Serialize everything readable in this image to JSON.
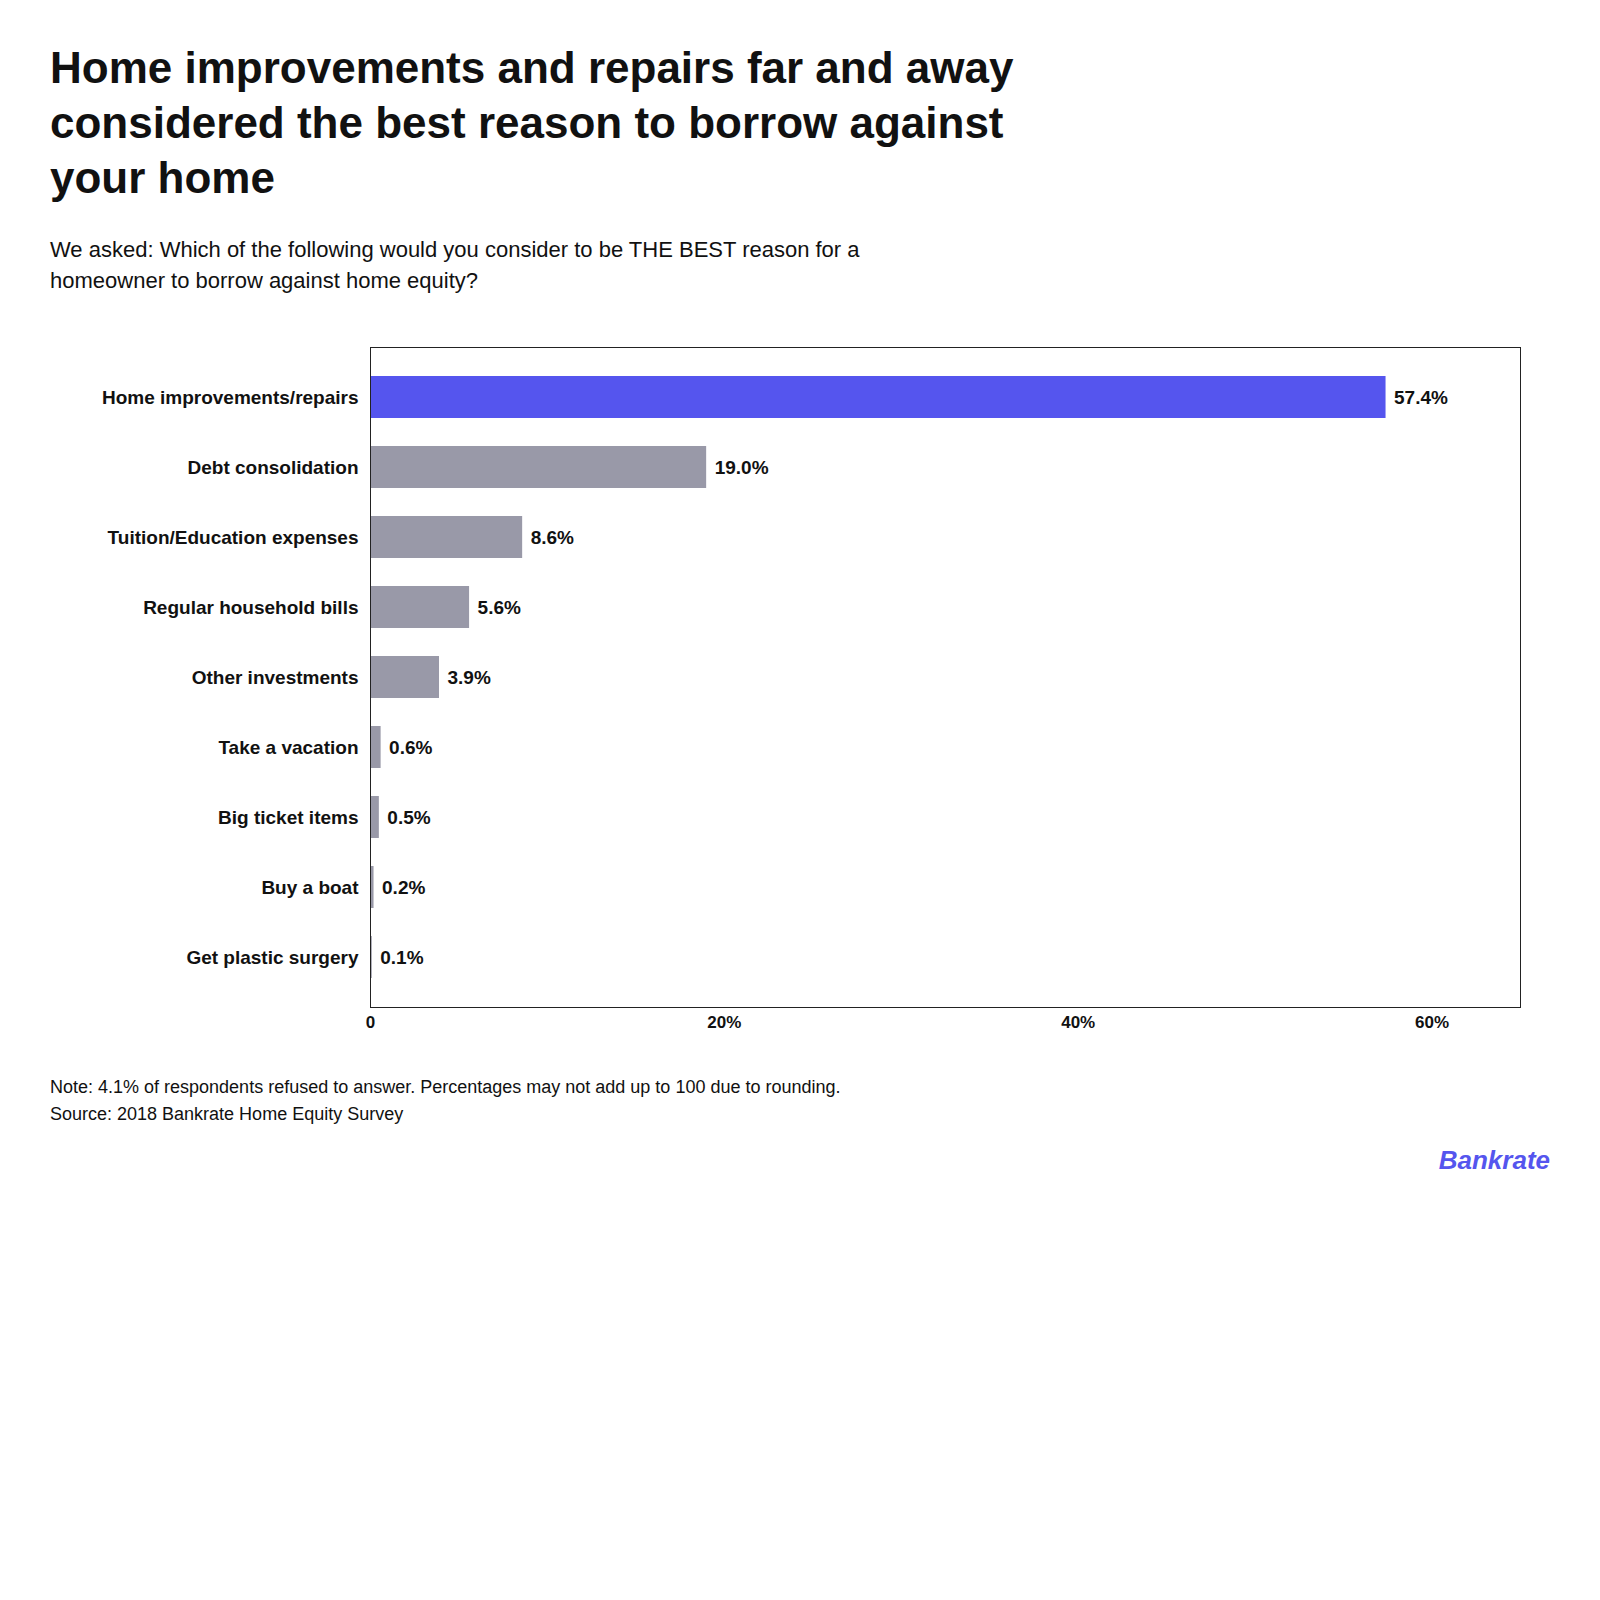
{
  "chart_data": {
    "type": "bar",
    "orientation": "horizontal",
    "title": "Home improvements and repairs far and away\nconsidered the best reason to borrow against\nyour home",
    "subtitle": "We asked:  Which of the following would you consider to be THE BEST reason for a\nhomeowner to borrow against home equity?",
    "categories": [
      "Home improvements/repairs",
      "Debt consolidation",
      "Tuition/Education expenses",
      "Regular household bills",
      "Other investments",
      "Take a vacation",
      "Big ticket items",
      "Buy a boat",
      "Get plastic surgery"
    ],
    "values": [
      57.4,
      19.0,
      8.6,
      5.6,
      3.9,
      0.6,
      0.5,
      0.2,
      0.1
    ],
    "value_labels": [
      "57.4%",
      "19.0%",
      "8.6%",
      "5.6%",
      "3.9%",
      "0.6%",
      "0.5%",
      "0.2%",
      "0.1%"
    ],
    "colors": [
      "#5555ee",
      "#9999a8",
      "#9999a8",
      "#9999a8",
      "#9999a8",
      "#9999a8",
      "#9999a8",
      "#9999a8",
      "#9999a8"
    ],
    "data_labels": true,
    "xlim": [
      0,
      65
    ],
    "xticks": [
      0,
      {
        "value": 20,
        "label": "20%"
      },
      {
        "value": 40,
        "label": "40%"
      },
      {
        "value": 60,
        "label": "60%"
      }
    ],
    "grid": false,
    "annotations": [
      {
        "text": "Note: 4.1% of respondents refused to answer. Percentages may not add up to 100 due to rounding."
      },
      {
        "text": "Source: 2018 Bankrate Home Equity Survey"
      },
      {
        "text": "Bankrate",
        "color": "#5555ee"
      }
    ]
  }
}
